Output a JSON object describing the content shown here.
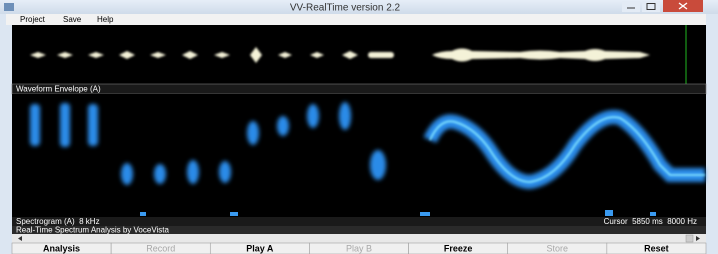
{
  "window": {
    "title": "VV-RealTime version 2.2"
  },
  "menu": [
    "Project",
    "Save",
    "Help"
  ],
  "panels": {
    "waveform_label": "Waveform Envelope (A)",
    "spectrogram_label": "Spectrogram (A)  8 kHz",
    "cursor_label": "Cursor  5850 ms  8000 Hz",
    "spectrum_label": "Real-Time Spectrum Analysis by VoceVista"
  },
  "buttons": [
    {
      "label": "Analysis",
      "enabled": true
    },
    {
      "label": "Record",
      "enabled": false
    },
    {
      "label": "Play A",
      "enabled": true
    },
    {
      "label": "Play B",
      "enabled": false
    },
    {
      "label": "Freeze",
      "enabled": true
    },
    {
      "label": "Store",
      "enabled": false
    },
    {
      "label": "Reset",
      "enabled": true
    }
  ]
}
